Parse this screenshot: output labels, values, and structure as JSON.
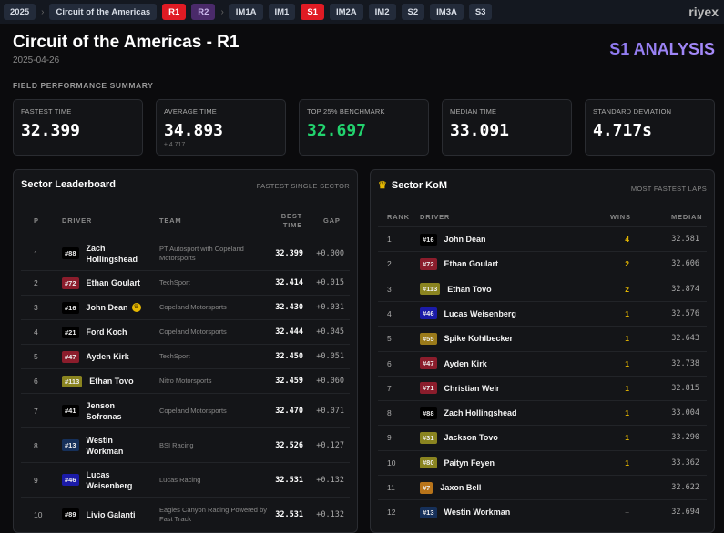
{
  "nav": {
    "crumbs": [
      "2025",
      "Circuit of the Americas"
    ],
    "sessions": [
      {
        "label": "R1",
        "state": "active"
      },
      {
        "label": "R2",
        "state": "alt"
      }
    ],
    "sectors": [
      {
        "label": "IM1A"
      },
      {
        "label": "IM1"
      },
      {
        "label": "S1",
        "active": true
      },
      {
        "label": "IM2A"
      },
      {
        "label": "IM2"
      },
      {
        "label": "S2"
      },
      {
        "label": "IM3A"
      },
      {
        "label": "S3"
      }
    ],
    "logo": "riyex"
  },
  "header": {
    "title": "Circuit of the Americas - R1",
    "date": "2025-04-26",
    "analysis": "S1 ANALYSIS"
  },
  "summary": {
    "label": "FIELD PERFORMANCE SUMMARY",
    "cards": [
      {
        "label": "FASTEST TIME",
        "value": "32.399"
      },
      {
        "label": "AVERAGE TIME",
        "value": "34.893",
        "sub": "± 4.717"
      },
      {
        "label": "TOP 25% BENCHMARK",
        "value": "32.697",
        "accent": "#22d36e"
      },
      {
        "label": "MEDIAN TIME",
        "value": "33.091"
      },
      {
        "label": "STANDARD DEVIATION",
        "value": "4.717s"
      }
    ]
  },
  "leaderboard": {
    "title": "Sector Leaderboard",
    "subtitle": "FASTEST SINGLE SECTOR",
    "headers": {
      "p": "P",
      "driver": "DRIVER",
      "team": "TEAM",
      "best": "BEST TIME",
      "gap": "GAP"
    },
    "rows": [
      {
        "p": "1",
        "num": "#88",
        "color": "#000000",
        "driver": "Zach Hollingshead",
        "team": "PT Autosport with Copeland Motorsports",
        "best": "32.399",
        "gap": "+0.000"
      },
      {
        "p": "2",
        "num": "#72",
        "color": "#8b1d2c",
        "driver": "Ethan Goulart",
        "team": "TechSport",
        "best": "32.414",
        "gap": "+0.015"
      },
      {
        "p": "3",
        "num": "#16",
        "color": "#000000",
        "driver": "John Dean",
        "team": "Copeland Motorsports",
        "best": "32.430",
        "gap": "+0.031",
        "crown": true
      },
      {
        "p": "4",
        "num": "#21",
        "color": "#000000",
        "driver": "Ford Koch",
        "team": "Copeland Motorsports",
        "best": "32.444",
        "gap": "+0.045"
      },
      {
        "p": "5",
        "num": "#47",
        "color": "#8b1d2c",
        "driver": "Ayden Kirk",
        "team": "TechSport",
        "best": "32.450",
        "gap": "+0.051"
      },
      {
        "p": "6",
        "num": "#113",
        "color": "#8a8420",
        "driver": "Ethan Tovo",
        "team": "Nitro Motorsports",
        "best": "32.459",
        "gap": "+0.060"
      },
      {
        "p": "7",
        "num": "#41",
        "color": "#000000",
        "driver": "Jenson Sofronas",
        "team": "Copeland Motorsports",
        "best": "32.470",
        "gap": "+0.071"
      },
      {
        "p": "8",
        "num": "#13",
        "color": "#16305a",
        "driver": "Westin Workman",
        "team": "BSI Racing",
        "best": "32.526",
        "gap": "+0.127"
      },
      {
        "p": "9",
        "num": "#46",
        "color": "#1b1ba8",
        "driver": "Lucas Weisenberg",
        "team": "Lucas Racing",
        "best": "32.531",
        "gap": "+0.132"
      },
      {
        "p": "10",
        "num": "#89",
        "color": "#000000",
        "driver": "Livio Galanti",
        "team": "Eagles Canyon Racing Powered by Fast Track",
        "best": "32.531",
        "gap": "+0.132"
      }
    ]
  },
  "kom": {
    "title": "Sector KoM",
    "subtitle": "MOST FASTEST LAPS",
    "headers": {
      "rank": "RANK",
      "driver": "DRIVER",
      "wins": "WINS",
      "median": "MEDIAN"
    },
    "rows": [
      {
        "rank": "1",
        "num": "#16",
        "color": "#000000",
        "driver": "John Dean",
        "wins": "4",
        "median": "32.581"
      },
      {
        "rank": "2",
        "num": "#72",
        "color": "#8b1d2c",
        "driver": "Ethan Goulart",
        "wins": "2",
        "median": "32.606"
      },
      {
        "rank": "3",
        "num": "#113",
        "color": "#8a8420",
        "driver": "Ethan Tovo",
        "wins": "2",
        "median": "32.874"
      },
      {
        "rank": "4",
        "num": "#46",
        "color": "#1b1ba8",
        "driver": "Lucas Weisenberg",
        "wins": "1",
        "median": "32.576"
      },
      {
        "rank": "5",
        "num": "#55",
        "color": "#9a7a1a",
        "driver": "Spike Kohlbecker",
        "wins": "1",
        "median": "32.643"
      },
      {
        "rank": "6",
        "num": "#47",
        "color": "#8b1d2c",
        "driver": "Ayden Kirk",
        "wins": "1",
        "median": "32.738"
      },
      {
        "rank": "7",
        "num": "#71",
        "color": "#8b1d2c",
        "driver": "Christian Weir",
        "wins": "1",
        "median": "32.815"
      },
      {
        "rank": "8",
        "num": "#88",
        "color": "#000000",
        "driver": "Zach Hollingshead",
        "wins": "1",
        "median": "33.004"
      },
      {
        "rank": "9",
        "num": "#31",
        "color": "#8a8420",
        "driver": "Jackson Tovo",
        "wins": "1",
        "median": "33.290"
      },
      {
        "rank": "10",
        "num": "#80",
        "color": "#8a8420",
        "driver": "Paityn Feyen",
        "wins": "1",
        "median": "33.362"
      },
      {
        "rank": "11",
        "num": "#7",
        "color": "#b8741a",
        "driver": "Jaxon Bell",
        "wins": "–",
        "median": "32.622"
      },
      {
        "rank": "12",
        "num": "#13",
        "color": "#16305a",
        "driver": "Westin Workman",
        "wins": "–",
        "median": "32.694"
      }
    ]
  }
}
